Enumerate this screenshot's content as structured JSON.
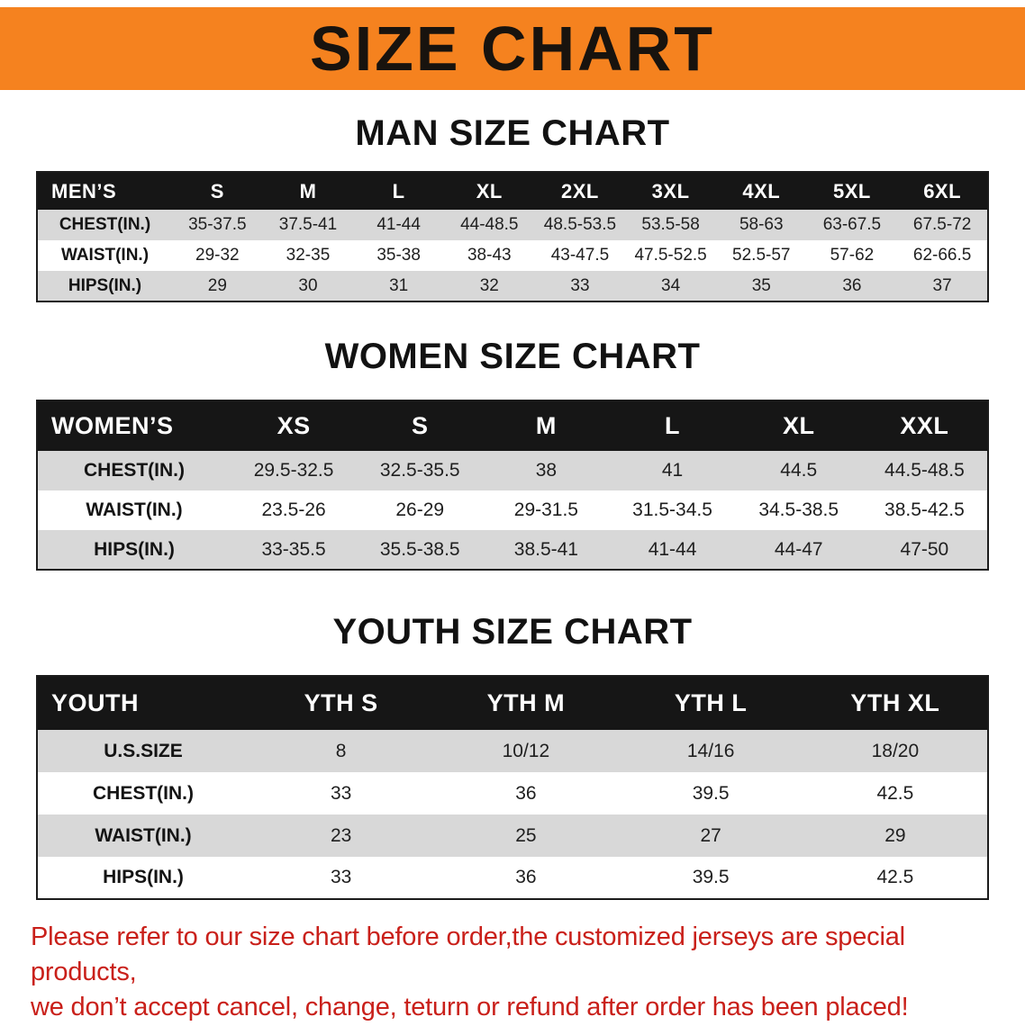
{
  "colors": {
    "banner_bg": "#f5821f",
    "header_bg": "#161616",
    "stripe_gray": "#d8d8d8",
    "notice_red": "#c9201a"
  },
  "banner": {
    "title": "SIZE CHART"
  },
  "sections": [
    {
      "heading": "MAN SIZE CHART",
      "table": {
        "header": [
          "MEN’S",
          "S",
          "M",
          "L",
          "XL",
          "2XL",
          "3XL",
          "4XL",
          "5XL",
          "6XL"
        ],
        "rows": [
          {
            "label": "CHEST(IN.)",
            "values": [
              "35-37.5",
              "37.5-41",
              "41-44",
              "44-48.5",
              "48.5-53.5",
              "53.5-58",
              "58-63",
              "63-67.5",
              "67.5-72"
            ]
          },
          {
            "label": "WAIST(IN.)",
            "values": [
              "29-32",
              "32-35",
              "35-38",
              "38-43",
              "43-47.5",
              "47.5-52.5",
              "52.5-57",
              "57-62",
              "62-66.5"
            ]
          },
          {
            "label": "HIPS(IN.)",
            "values": [
              "29",
              "30",
              "31",
              "32",
              "33",
              "34",
              "35",
              "36",
              "37"
            ]
          }
        ]
      }
    },
    {
      "heading": "WOMEN SIZE CHART",
      "table": {
        "header": [
          "WOMEN’S",
          "XS",
          "S",
          "M",
          "L",
          "XL",
          "XXL"
        ],
        "rows": [
          {
            "label": "CHEST(IN.)",
            "values": [
              "29.5-32.5",
              "32.5-35.5",
              "38",
              "41",
              "44.5",
              "44.5-48.5"
            ]
          },
          {
            "label": "WAIST(IN.)",
            "values": [
              "23.5-26",
              "26-29",
              "29-31.5",
              "31.5-34.5",
              "34.5-38.5",
              "38.5-42.5"
            ]
          },
          {
            "label": "HIPS(IN.)",
            "values": [
              "33-35.5",
              "35.5-38.5",
              "38.5-41",
              "41-44",
              "44-47",
              "47-50"
            ]
          }
        ]
      }
    },
    {
      "heading": "YOUTH SIZE CHART",
      "table": {
        "header": [
          "YOUTH",
          "YTH S",
          "YTH M",
          "YTH L",
          "YTH XL"
        ],
        "rows": [
          {
            "label": "U.S.SIZE",
            "values": [
              "8",
              "10/12",
              "14/16",
              "18/20"
            ]
          },
          {
            "label": "CHEST(IN.)",
            "values": [
              "33",
              "36",
              "39.5",
              "42.5"
            ]
          },
          {
            "label": "WAIST(IN.)",
            "values": [
              "23",
              "25",
              "27",
              "29"
            ]
          },
          {
            "label": "HIPS(IN.)",
            "values": [
              "33",
              "36",
              "39.5",
              "42.5"
            ]
          }
        ]
      }
    }
  ],
  "footer": {
    "line1": "Please refer to our size chart before order,the customized jerseys are special products,",
    "line2": "we don’t accept cancel, change, teturn or refund after order has been placed!"
  }
}
